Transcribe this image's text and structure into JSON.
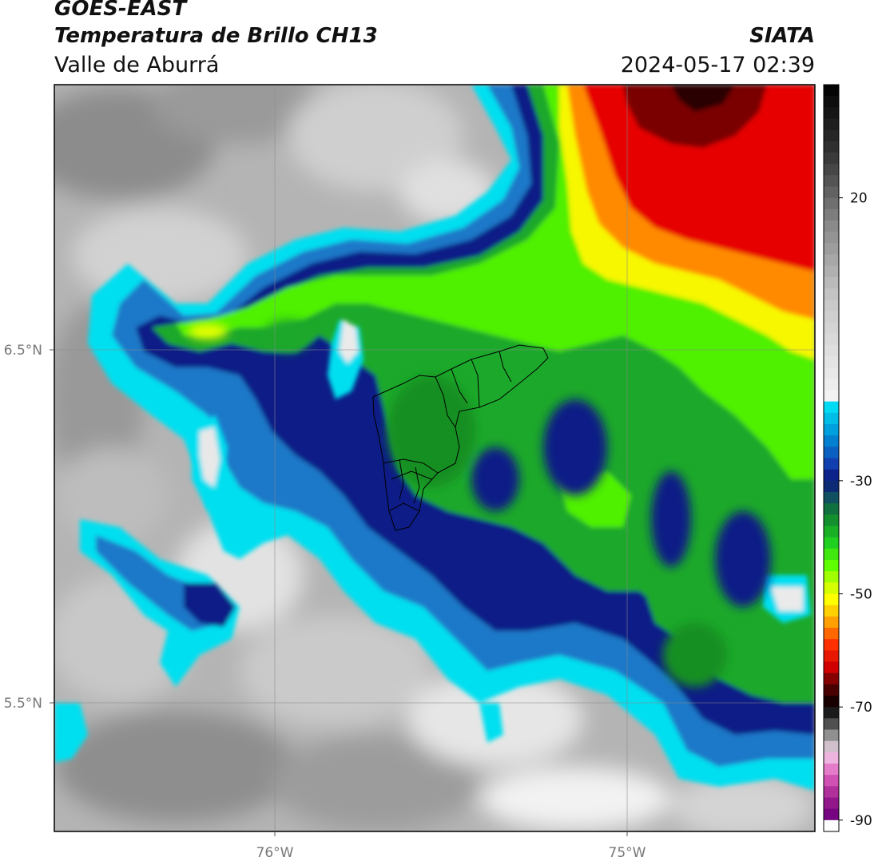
{
  "header": {
    "satellite": "GOES-EAST",
    "product": "Temperatura de Brillo CH13",
    "region": "Valle de Aburrá",
    "source": "SIATA",
    "datetime": "2024-05-17 02:39"
  },
  "axes": {
    "lat_ticks": [
      {
        "label": "6.5°N",
        "value": 6.5
      },
      {
        "label": "5.5°N",
        "value": 5.5
      }
    ],
    "lon_ticks": [
      {
        "label": "76°W",
        "value": -76
      },
      {
        "label": "75°W",
        "value": -75
      }
    ],
    "gridlines": true
  },
  "colorbar": {
    "ticks": [
      {
        "label": "20",
        "value": 20
      },
      {
        "label": "-30",
        "value": -30
      },
      {
        "label": "-50",
        "value": -50
      },
      {
        "label": "-70",
        "value": -70
      },
      {
        "label": "-90",
        "value": -90
      }
    ],
    "placement": "right"
  },
  "colors": {
    "clear_sky_dark": "#8a8a8a",
    "clear_sky_light": "#e8e8e8",
    "cyan": "#00e0f0",
    "blue": "#1060c0",
    "navy": "#0a1a80",
    "green": "#20b020",
    "bright_green": "#50ff00",
    "yellow": "#ffff00",
    "orange": "#ff8000",
    "red": "#e80000",
    "dark_red": "#700000",
    "black": "#000000",
    "pink": "#e060c0",
    "purple": "#800090"
  }
}
